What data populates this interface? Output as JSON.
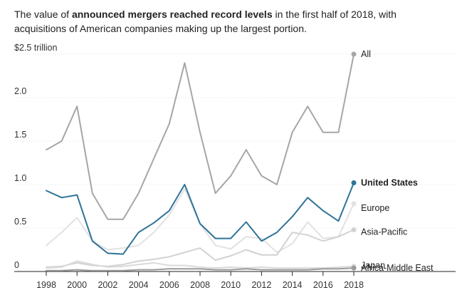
{
  "caption": {
    "part1": "The value of ",
    "bold": "announced mergers reached record levels",
    "part2": " in the first half of 2018, with acquisitions of American companies making up the largest portion."
  },
  "chart_data": {
    "type": "line",
    "x": [
      1998,
      1999,
      2000,
      2001,
      2002,
      2003,
      2004,
      2005,
      2006,
      2007,
      2008,
      2009,
      2010,
      2011,
      2012,
      2013,
      2014,
      2015,
      2016,
      2017,
      2018
    ],
    "xticks": [
      "1998",
      "2000",
      "2002",
      "2004",
      "2006",
      "2008",
      "2010",
      "2012",
      "2014",
      "2016",
      "2018"
    ],
    "ylim": [
      0,
      2.5
    ],
    "yticks": [
      {
        "value": 0,
        "label": "0"
      },
      {
        "value": 0.5,
        "label": "0.5"
      },
      {
        "value": 1.0,
        "label": "1.0"
      },
      {
        "value": 1.5,
        "label": "1.5"
      },
      {
        "value": 2.0,
        "label": "2.0"
      },
      {
        "value": 2.5,
        "label": "$2.5  trillion"
      }
    ],
    "series": [
      {
        "name": "All",
        "color": "#a6a6a6",
        "bold": false,
        "values": [
          1.4,
          1.5,
          1.9,
          0.9,
          0.6,
          0.6,
          0.9,
          1.3,
          1.7,
          2.4,
          1.6,
          0.9,
          1.1,
          1.4,
          1.1,
          1.0,
          1.6,
          1.9,
          1.6,
          1.6,
          2.5
        ]
      },
      {
        "name": "Europe",
        "color": "#e2e2e2",
        "bold": false,
        "values": [
          0.3,
          0.45,
          0.62,
          0.35,
          0.25,
          0.27,
          0.3,
          0.45,
          0.65,
          0.95,
          0.55,
          0.3,
          0.26,
          0.4,
          0.38,
          0.22,
          0.32,
          0.57,
          0.38,
          0.4,
          0.78
        ]
      },
      {
        "name": "Asia-Pacific",
        "color": "#d2d2d2",
        "bold": false,
        "values": [
          0.05,
          0.06,
          0.1,
          0.07,
          0.06,
          0.08,
          0.12,
          0.14,
          0.17,
          0.22,
          0.27,
          0.13,
          0.18,
          0.25,
          0.19,
          0.19,
          0.45,
          0.42,
          0.35,
          0.4,
          0.48
        ]
      },
      {
        "name": "Japan",
        "color": "#dadada",
        "bold": false,
        "values": [
          0.04,
          0.05,
          0.12,
          0.08,
          0.05,
          0.06,
          0.08,
          0.1,
          0.07,
          0.07,
          0.05,
          0.04,
          0.05,
          0.04,
          0.05,
          0.04,
          0.04,
          0.04,
          0.04,
          0.05,
          0.06
        ]
      },
      {
        "name": "Africa-Middle East",
        "color": "#9a9a9a",
        "bold": false,
        "values": [
          0.01,
          0.01,
          0.02,
          0.01,
          0.01,
          0.01,
          0.02,
          0.02,
          0.03,
          0.03,
          0.03,
          0.02,
          0.02,
          0.03,
          0.02,
          0.02,
          0.02,
          0.02,
          0.03,
          0.03,
          0.04
        ]
      },
      {
        "name": "United States",
        "color": "#2f7397",
        "bold": true,
        "values": [
          0.93,
          0.85,
          0.88,
          0.35,
          0.21,
          0.2,
          0.45,
          0.56,
          0.7,
          1.0,
          0.55,
          0.38,
          0.38,
          0.57,
          0.35,
          0.45,
          0.63,
          0.85,
          0.7,
          0.58,
          1.02
        ]
      }
    ],
    "grid": true,
    "legend": "right-end labels"
  }
}
